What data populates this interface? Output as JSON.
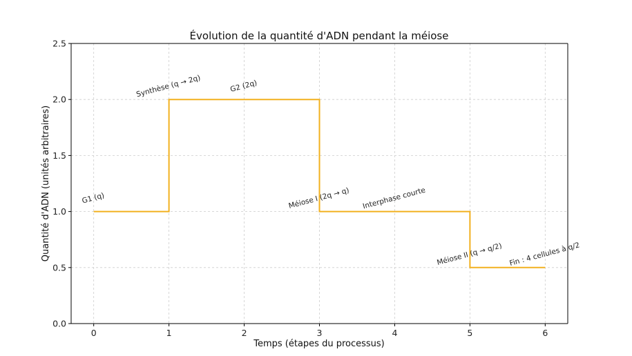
{
  "chart_data": {
    "type": "line",
    "step": "post",
    "title": "Évolution de la quantité d'ADN pendant la méiose",
    "xlabel": "Temps (étapes du processus)",
    "ylabel": "Quantité d'ADN (unités arbitraires)",
    "x": [
      0,
      1,
      2,
      3,
      4,
      5,
      6
    ],
    "series": [
      {
        "values": [
          1.0,
          2.0,
          2.0,
          1.0,
          1.0,
          0.5,
          0.5
        ],
        "color": "#f2b01e"
      }
    ],
    "xlim": [
      -0.3,
      6.3
    ],
    "ylim": [
      0,
      2.5
    ],
    "xticks": [
      "0",
      "1",
      "2",
      "3",
      "4",
      "5",
      "6"
    ],
    "yticks": [
      "0.0",
      "0.5",
      "1.0",
      "1.5",
      "2.0",
      "2.5"
    ],
    "grid": true,
    "annotations": [
      {
        "text": "G1 (q)",
        "x": 0.0,
        "y": 1.1
      },
      {
        "text": "Synthèse (q → 2q)",
        "x": 1.0,
        "y": 2.1
      },
      {
        "text": "G2 (2q)",
        "x": 2.0,
        "y": 2.1
      },
      {
        "text": "Méiose I (2q → q)",
        "x": 3.0,
        "y": 1.1
      },
      {
        "text": "Interphase courte",
        "x": 4.0,
        "y": 1.1
      },
      {
        "text": "Méiose II (q → q/2)",
        "x": 5.0,
        "y": 0.6
      },
      {
        "text": "Fin : 4 cellules à q/2",
        "x": 6.0,
        "y": 0.6
      }
    ]
  }
}
